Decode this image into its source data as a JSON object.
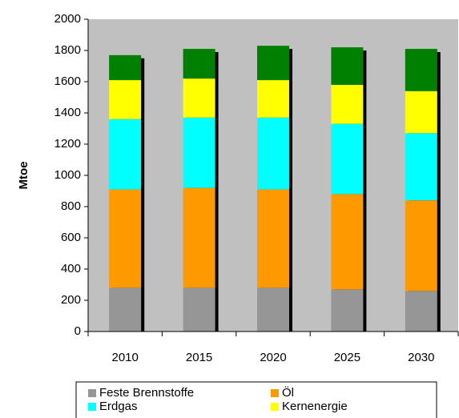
{
  "chart_data": {
    "type": "stacked_bar",
    "y_label": "Mtoe",
    "categories": [
      "2010",
      "2015",
      "2020",
      "2025",
      "2030"
    ],
    "series": [
      {
        "name": "Feste Brennstoffe",
        "color": "#969696",
        "values": [
          280,
          280,
          280,
          270,
          260
        ]
      },
      {
        "name": "Öl",
        "color": "#ff9900",
        "values": [
          630,
          640,
          630,
          610,
          580
        ]
      },
      {
        "name": "Erdgas",
        "color": "#00ffff",
        "values": [
          450,
          450,
          460,
          450,
          430
        ]
      },
      {
        "name": "Kernenergie",
        "color": "#ffff00",
        "values": [
          250,
          250,
          240,
          250,
          270
        ]
      },
      {
        "color": "#008000",
        "values": [
          160,
          190,
          220,
          240,
          270
        ]
      }
    ],
    "ylim": [
      0,
      2000
    ],
    "yticks": [
      0,
      200,
      400,
      600,
      800,
      1000,
      1200,
      1400,
      1600,
      1800,
      2000
    ],
    "plot_background": "#c0c0c0"
  }
}
